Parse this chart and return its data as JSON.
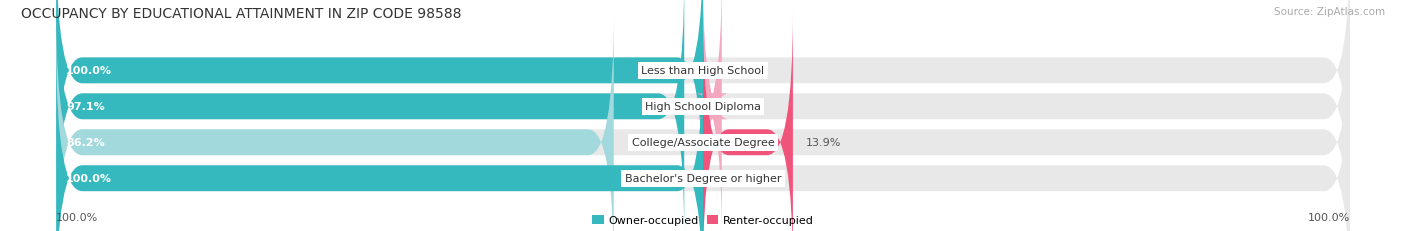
{
  "title": "OCCUPANCY BY EDUCATIONAL ATTAINMENT IN ZIP CODE 98588",
  "source": "Source: ZipAtlas.com",
  "categories": [
    "Less than High School",
    "High School Diploma",
    "College/Associate Degree",
    "Bachelor's Degree or higher"
  ],
  "owner_values": [
    100.0,
    97.1,
    86.2,
    100.0
  ],
  "renter_values": [
    0.0,
    2.9,
    13.9,
    0.0
  ],
  "owner_color_strong": "#35b8be",
  "owner_color_light": "#a2d9dc",
  "renter_color_strong": "#f0547a",
  "renter_color_light": "#f4a8bf",
  "bar_bg_color": "#e8e8e8",
  "owner_label": "Owner-occupied",
  "renter_label": "Renter-occupied",
  "x_left_label": "100.0%",
  "x_right_label": "100.0%",
  "title_fontsize": 10,
  "label_fontsize": 8,
  "cat_fontsize": 8,
  "tick_fontsize": 8,
  "source_fontsize": 7.5
}
